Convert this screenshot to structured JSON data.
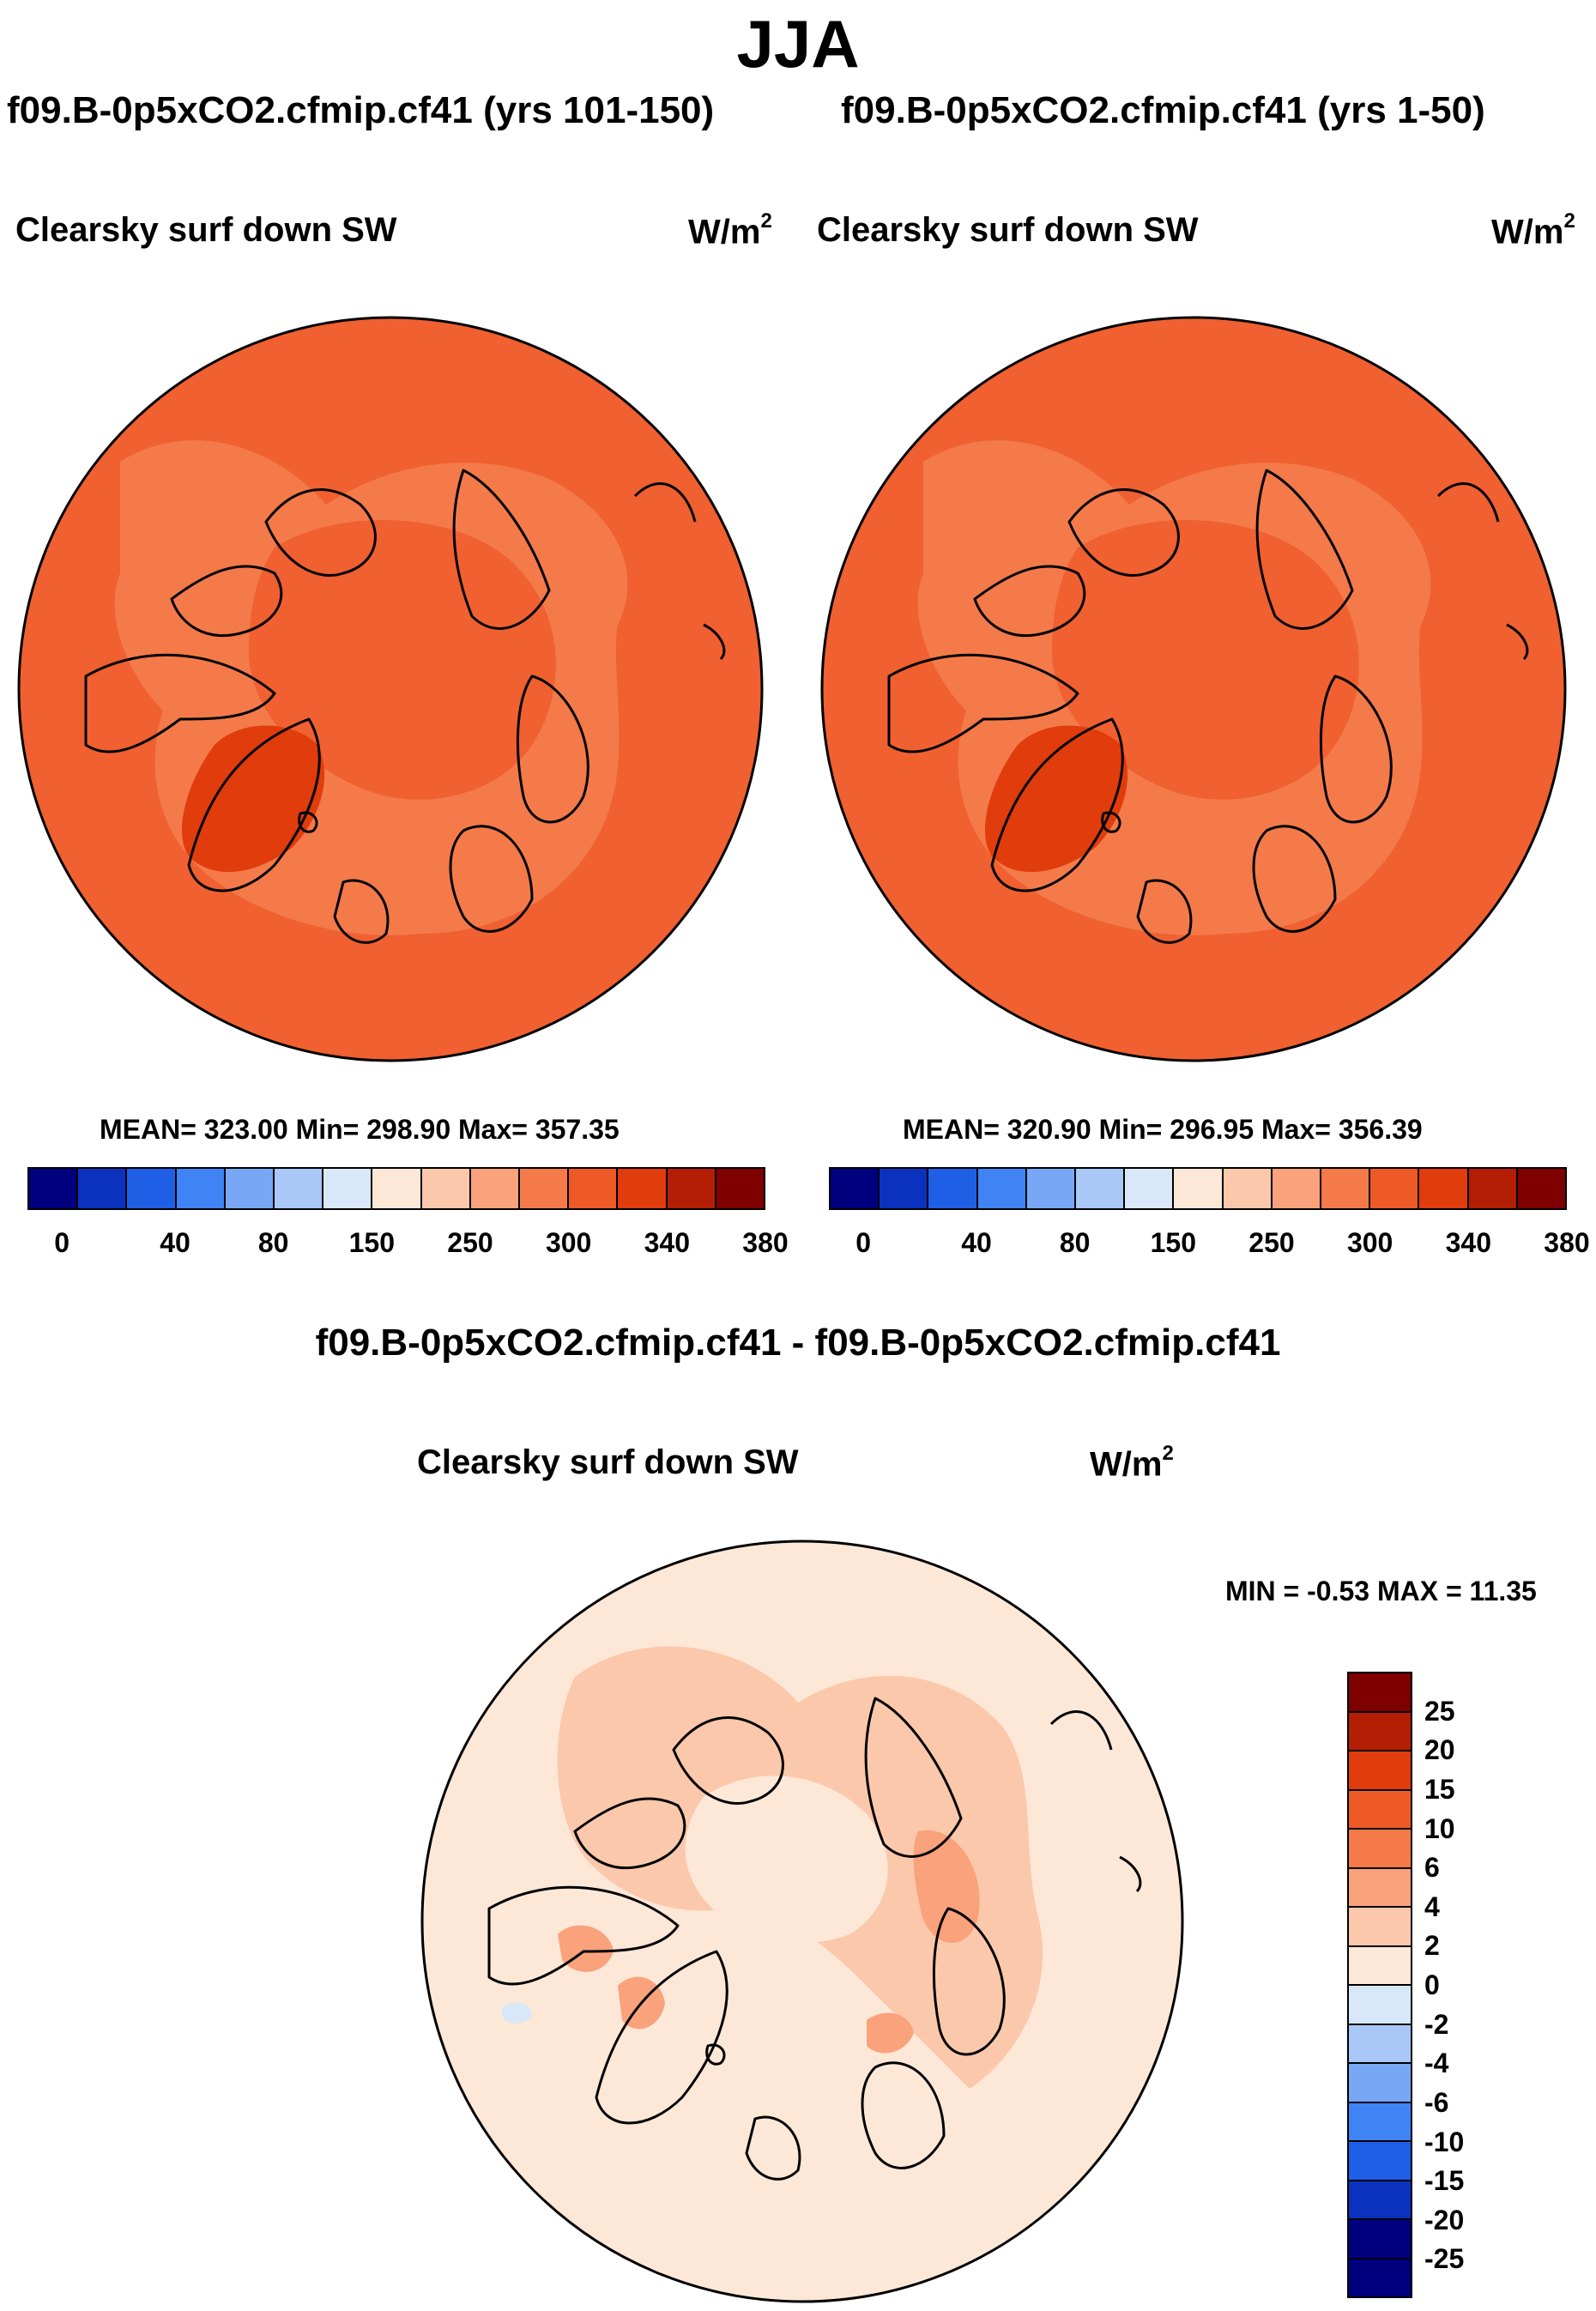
{
  "figure": {
    "title": "JJA",
    "unit_base": "W/m",
    "unit_exp": "2"
  },
  "panels": [
    {
      "title": "f09.B-0p5xCO2.cfmip.cf41 (yrs 101-150)",
      "variable": "Clearsky surf down SW",
      "stats": "MEAN= 323.00  Min= 298.90  Max= 357.35"
    },
    {
      "title": "f09.B-0p5xCO2.cfmip.cf41 (yrs 1-50)",
      "variable": "Clearsky surf down SW",
      "stats": "MEAN= 320.90  Min= 296.95  Max= 356.39"
    },
    {
      "title": "f09.B-0p5xCO2.cfmip.cf41 - f09.B-0p5xCO2.cfmip.cf41",
      "variable": "Clearsky surf down SW",
      "stats": "MIN =  -0.53 MAX =  11.35"
    }
  ],
  "colorbar_abs": {
    "colors": [
      "#00007f",
      "#0a32bf",
      "#1e5fe6",
      "#3f83f5",
      "#78a8f5",
      "#a9c8f7",
      "#d8e8f8",
      "#fde8d8",
      "#fcc8ac",
      "#f9a27c",
      "#f47a4a",
      "#ee5a25",
      "#e03c0c",
      "#b41e05",
      "#7f0000"
    ],
    "labels": [
      "0",
      "40",
      "80",
      "150",
      "250",
      "300",
      "340",
      "380"
    ]
  },
  "colorbar_diff": {
    "colors": [
      "#7f0000",
      "#b41e05",
      "#e03c0c",
      "#ee5a25",
      "#f47a4a",
      "#f9a27c",
      "#fcc8ac",
      "#fde8d8",
      "#d8e8f8",
      "#a9c8f7",
      "#78a8f5",
      "#3f83f5",
      "#1e5fe6",
      "#0a32bf",
      "#00007f"
    ],
    "labels": [
      "25",
      "20",
      "15",
      "10",
      "6",
      "4",
      "2",
      "0",
      "-2",
      "-4",
      "-6",
      "-10",
      "-15",
      "-20",
      "-25"
    ]
  },
  "map_colors": {
    "ocean_abs": "#f06030",
    "light_abs": "#f47a4a",
    "greenland_abs": "#e03c0c",
    "ocean_diff": "#fde8d8",
    "light_diff": "#fcc8ac",
    "mid_diff": "#f9a27c",
    "neg_diff": "#d8e8f8"
  }
}
